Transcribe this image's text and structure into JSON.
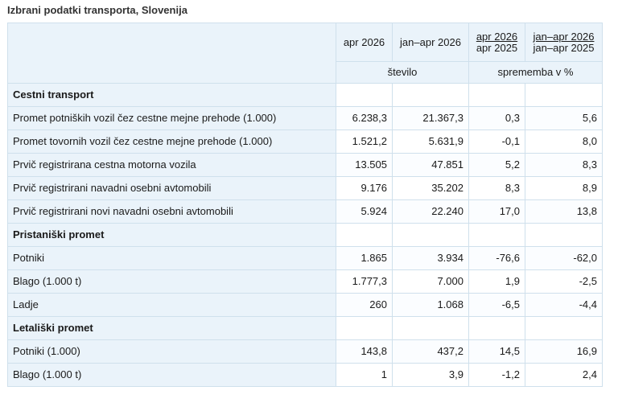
{
  "title": "Izbrani podatki transporta, Slovenija",
  "headers": {
    "col1": "apr 2026",
    "col2": "jan–apr 2026",
    "col3_line1": "apr 2026",
    "col3_line2": "apr 2025",
    "col4_line1": "jan–apr 2026",
    "col4_line2": "jan–apr 2025",
    "unit_count": "število",
    "unit_change": "sprememba v %"
  },
  "sections": [
    {
      "name": "Cestni transport",
      "rows": [
        {
          "label": "Promet potniških vozil čez cestne mejne prehode (1.000)",
          "values": [
            "6.238,3",
            "21.367,3",
            "0,3",
            "5,6"
          ]
        },
        {
          "label": "Promet tovornih vozil čez cestne mejne prehode (1.000)",
          "values": [
            "1.521,2",
            "5.631,9",
            "-0,1",
            "8,0"
          ]
        },
        {
          "label": "Prvič registrirana cestna motorna vozila",
          "values": [
            "13.505",
            "47.851",
            "5,2",
            "8,3"
          ]
        },
        {
          "label": "Prvič registrirani navadni osebni avtomobili",
          "values": [
            "9.176",
            "35.202",
            "8,3",
            "8,9"
          ]
        },
        {
          "label": "Prvič registrirani novi navadni osebni avtomobili",
          "values": [
            "5.924",
            "22.240",
            "17,0",
            "13,8"
          ]
        }
      ]
    },
    {
      "name": "Pristaniški promet",
      "rows": [
        {
          "label": "Potniki",
          "values": [
            "1.865",
            "3.934",
            "-76,6",
            "-62,0"
          ]
        },
        {
          "label": "Blago (1.000 t)",
          "values": [
            "1.777,3",
            "7.000",
            "1,9",
            "-2,5"
          ]
        },
        {
          "label": "Ladje",
          "values": [
            "260",
            "1.068",
            "-6,5",
            "-4,4"
          ]
        }
      ]
    },
    {
      "name": "Letališki promet",
      "rows": [
        {
          "label": "Potniki (1.000)",
          "values": [
            "143,8",
            "437,2",
            "14,5",
            "16,9"
          ]
        },
        {
          "label": "Blago (1.000 t)",
          "values": [
            "1",
            "3,9",
            "-1,2",
            "2,4"
          ]
        }
      ]
    }
  ]
}
